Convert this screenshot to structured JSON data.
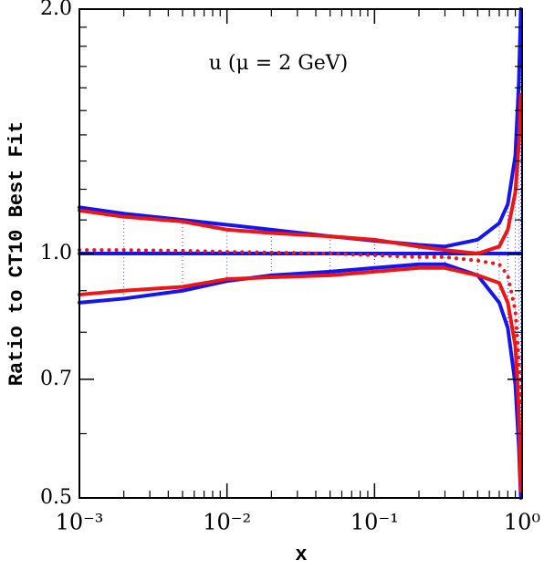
{
  "chart_data": {
    "type": "line",
    "title": "u (μ = 2 GeV)",
    "xlabel": "x",
    "ylabel": "Ratio to CT10 Best Fit",
    "xscale": "log",
    "yscale": "log",
    "xlim": [
      0.001,
      1
    ],
    "ylim": [
      0.5,
      2.0
    ],
    "xticks": [
      {
        "value": 0.001,
        "label": "10⁻³"
      },
      {
        "value": 0.01,
        "label": "10⁻²"
      },
      {
        "value": 0.1,
        "label": "10⁻¹"
      },
      {
        "value": 1,
        "label": "10⁰"
      }
    ],
    "xminorticks": [
      0.002,
      0.003,
      0.004,
      0.005,
      0.006,
      0.007,
      0.008,
      0.009,
      0.02,
      0.03,
      0.04,
      0.05,
      0.06,
      0.07,
      0.08,
      0.09,
      0.2,
      0.3,
      0.4,
      0.5,
      0.6,
      0.7,
      0.8,
      0.9
    ],
    "yticks": [
      0.5,
      0.7,
      {
        "value": 1.0,
        "label": "1.0"
      },
      {
        "value": 2.0,
        "label": "2.0"
      }
    ],
    "yminorticks": [
      0.6,
      0.8,
      0.9,
      1.1,
      1.2,
      1.3,
      1.4,
      1.5,
      1.6,
      1.7,
      1.8,
      1.9
    ],
    "hatch_color": "#3030ee",
    "x": [
      0.001,
      0.002,
      0.005,
      0.01,
      0.02,
      0.05,
      0.1,
      0.2,
      0.3,
      0.5,
      0.7,
      0.8,
      0.9,
      0.95,
      0.98
    ],
    "series": [
      {
        "color": "#1515ee",
        "style": "solid",
        "values": [
          1.14,
          1.12,
          1.1,
          1.085,
          1.07,
          1.05,
          1.037,
          1.025,
          1.02,
          1.04,
          1.09,
          1.15,
          1.32,
          1.62,
          2.0
        ]
      },
      {
        "color": "#1515ee",
        "style": "solid",
        "values": [
          0.87,
          0.88,
          0.9,
          0.925,
          0.94,
          0.95,
          0.96,
          0.97,
          0.97,
          0.94,
          0.87,
          0.81,
          0.69,
          0.58,
          0.5
        ]
      },
      {
        "color": "#1515ee",
        "style": "solid",
        "values": [
          1,
          1,
          1,
          1,
          1,
          1,
          1,
          1,
          1,
          1,
          1,
          1,
          1,
          1,
          1
        ]
      },
      {
        "color": "#ee1515",
        "style": "solid",
        "values": [
          1.13,
          1.11,
          1.095,
          1.07,
          1.06,
          1.05,
          1.04,
          1.02,
          1.01,
          1.0,
          1.02,
          1.07,
          1.19,
          1.36,
          1.57
        ]
      },
      {
        "color": "#ee1515",
        "style": "solid",
        "values": [
          0.89,
          0.9,
          0.91,
          0.93,
          0.935,
          0.94,
          0.95,
          0.96,
          0.96,
          0.94,
          0.92,
          0.87,
          0.77,
          0.64,
          0.51
        ]
      },
      {
        "color": "#ee1515",
        "style": "dotted",
        "values": [
          1.01,
          1.01,
          1.008,
          1.005,
          1.003,
          1.0,
          0.995,
          0.99,
          0.99,
          0.98,
          0.97,
          0.94,
          0.85,
          0.74,
          0.65
        ]
      }
    ]
  }
}
